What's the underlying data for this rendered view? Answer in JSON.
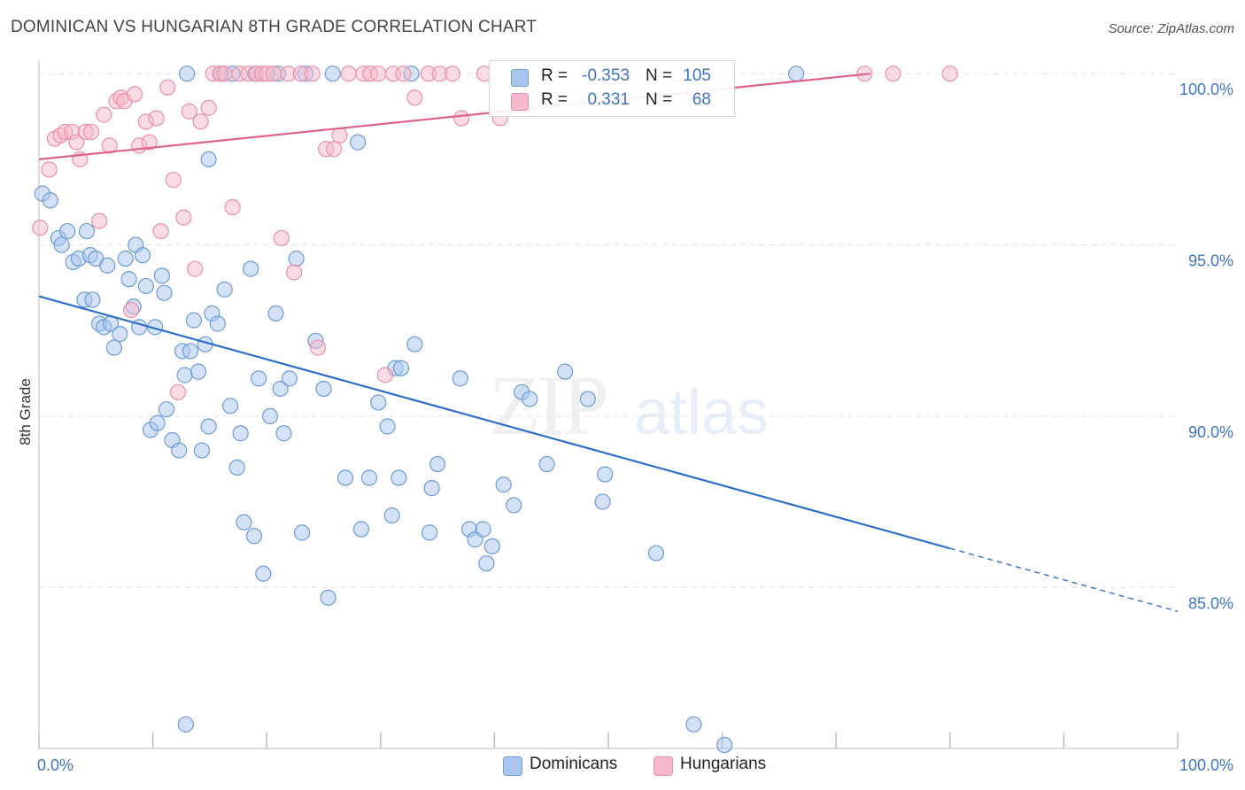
{
  "title": "DOMINICAN VS HUNGARIAN 8TH GRADE CORRELATION CHART",
  "source": "Source: ZipAtlas.com",
  "watermark": {
    "zip": "ZIP",
    "atlas": "atlas"
  },
  "colors": {
    "blue_fill": "#a9c6ef",
    "blue_stroke": "#6e9bd8",
    "blue_line": "#2f6fca",
    "pink_fill": "#f6b9cb",
    "pink_stroke": "#ec8fab",
    "pink_line": "#e0628c",
    "accent_text": "#3f74c9",
    "grid": "#e3e3e3"
  },
  "stats": [
    {
      "r_label": "R =",
      "r": "-0.353",
      "n_label": "N =",
      "n": "105",
      "color": "#a9c6ef",
      "stroke": "#6e9bd8"
    },
    {
      "r_label": "R =",
      "r": "0.331",
      "n_label": "N =",
      "n": "68",
      "color": "#f6b9cb",
      "stroke": "#ec8fab"
    }
  ],
  "legend": [
    {
      "label": "Dominicans",
      "color": "#a9c6ef",
      "stroke": "#6e9bd8"
    },
    {
      "label": "Hungarians",
      "color": "#f6b9cb",
      "stroke": "#ec8fab"
    }
  ],
  "chart_data": {
    "type": "scatter",
    "title": "DOMINICAN VS HUNGARIAN 8TH GRADE CORRELATION CHART",
    "xlabel": "",
    "ylabel": "8th Grade",
    "xlim": [
      0,
      100
    ],
    "ylim": [
      80.3,
      100.6
    ],
    "x_tick_labels": [
      "0.0%",
      "100.0%"
    ],
    "y_ticks": [
      85,
      90,
      95,
      100
    ],
    "y_tick_labels": [
      "85.0%",
      "90.0%",
      "95.0%",
      "100.0%"
    ],
    "grid": true,
    "legend_position": "bottom-center",
    "series": [
      {
        "name": "Dominicans",
        "color": "#a9c6ef",
        "trend": {
          "x0": 0,
          "y0": 93.5,
          "x1": 100,
          "y1": 84.3,
          "solid_until_x": 80
        },
        "points": [
          [
            0.3,
            96.5
          ],
          [
            1.0,
            96.3
          ],
          [
            1.7,
            95.2
          ],
          [
            2.0,
            95.0
          ],
          [
            2.5,
            95.4
          ],
          [
            3.0,
            94.5
          ],
          [
            3.5,
            94.6
          ],
          [
            4.0,
            93.4
          ],
          [
            4.5,
            94.7
          ],
          [
            4.7,
            93.4
          ],
          [
            5.0,
            94.6
          ],
          [
            5.3,
            92.7
          ],
          [
            5.7,
            92.6
          ],
          [
            6.0,
            94.4
          ],
          [
            6.3,
            92.7
          ],
          [
            6.6,
            92.0
          ],
          [
            7.1,
            92.4
          ],
          [
            7.6,
            94.6
          ],
          [
            7.9,
            94.0
          ],
          [
            8.3,
            93.2
          ],
          [
            8.5,
            95.0
          ],
          [
            8.8,
            92.6
          ],
          [
            9.1,
            94.7
          ],
          [
            9.4,
            93.8
          ],
          [
            9.8,
            89.6
          ],
          [
            10.2,
            92.6
          ],
          [
            10.4,
            89.8
          ],
          [
            10.8,
            94.1
          ],
          [
            11.0,
            93.6
          ],
          [
            11.2,
            90.2
          ],
          [
            11.7,
            89.3
          ],
          [
            12.3,
            89.0
          ],
          [
            12.6,
            91.9
          ],
          [
            12.8,
            91.2
          ],
          [
            13.3,
            91.9
          ],
          [
            13.6,
            92.8
          ],
          [
            14.0,
            91.3
          ],
          [
            14.3,
            89.0
          ],
          [
            14.6,
            92.1
          ],
          [
            14.9,
            89.7
          ],
          [
            15.2,
            93.0
          ],
          [
            15.7,
            92.7
          ],
          [
            16.3,
            93.7
          ],
          [
            16.8,
            90.3
          ],
          [
            17.4,
            88.5
          ],
          [
            17.7,
            89.5
          ],
          [
            18.0,
            86.9
          ],
          [
            18.6,
            94.3
          ],
          [
            18.9,
            86.5
          ],
          [
            19.3,
            91.1
          ],
          [
            19.7,
            85.4
          ],
          [
            20.3,
            90.0
          ],
          [
            20.8,
            93.0
          ],
          [
            21.2,
            90.8
          ],
          [
            21.5,
            89.5
          ],
          [
            22.0,
            91.1
          ],
          [
            22.6,
            94.6
          ],
          [
            23.1,
            86.6
          ],
          [
            23.4,
            100.0
          ],
          [
            24.3,
            92.2
          ],
          [
            25.0,
            90.8
          ],
          [
            25.4,
            84.7
          ],
          [
            25.8,
            100.0
          ],
          [
            26.9,
            88.2
          ],
          [
            28.0,
            98.0
          ],
          [
            28.3,
            86.7
          ],
          [
            29.0,
            88.2
          ],
          [
            29.8,
            90.4
          ],
          [
            30.6,
            89.7
          ],
          [
            31.0,
            87.1
          ],
          [
            31.3,
            91.4
          ],
          [
            31.6,
            88.2
          ],
          [
            31.8,
            91.4
          ],
          [
            32.7,
            100.0
          ],
          [
            33.0,
            92.1
          ],
          [
            34.3,
            86.6
          ],
          [
            34.5,
            87.9
          ],
          [
            35.0,
            88.6
          ],
          [
            37.0,
            91.1
          ],
          [
            37.8,
            86.7
          ],
          [
            38.3,
            86.4
          ],
          [
            39.0,
            86.7
          ],
          [
            39.3,
            85.7
          ],
          [
            39.8,
            86.2
          ],
          [
            40.8,
            88.0
          ],
          [
            41.7,
            87.4
          ],
          [
            42.4,
            90.7
          ],
          [
            43.1,
            90.5
          ],
          [
            44.6,
            88.6
          ],
          [
            46.2,
            91.3
          ],
          [
            48.2,
            90.5
          ],
          [
            49.5,
            87.5
          ],
          [
            49.7,
            88.3
          ],
          [
            54.2,
            86.0
          ],
          [
            57.5,
            81.0
          ],
          [
            60.2,
            80.4
          ],
          [
            14.9,
            97.5
          ],
          [
            12.9,
            81.0
          ],
          [
            66.5,
            100.0
          ],
          [
            16.0,
            100.0
          ],
          [
            21.0,
            100.0
          ],
          [
            19.0,
            100.0
          ],
          [
            4.2,
            95.4
          ],
          [
            17.0,
            100.0
          ],
          [
            13.0,
            100.0
          ]
        ]
      },
      {
        "name": "Hungarians",
        "color": "#f6b9cb",
        "trend": {
          "x0": 0,
          "y0": 97.5,
          "x1": 73,
          "y1": 100.0,
          "solid_until_x": 73
        },
        "points": [
          [
            0.1,
            95.5
          ],
          [
            0.9,
            97.2
          ],
          [
            1.4,
            98.1
          ],
          [
            1.9,
            98.2
          ],
          [
            2.3,
            98.3
          ],
          [
            2.9,
            98.3
          ],
          [
            3.3,
            98.0
          ],
          [
            3.6,
            97.5
          ],
          [
            4.1,
            98.3
          ],
          [
            4.6,
            98.3
          ],
          [
            5.3,
            95.7
          ],
          [
            5.7,
            98.8
          ],
          [
            6.2,
            97.9
          ],
          [
            6.8,
            99.2
          ],
          [
            7.2,
            99.3
          ],
          [
            7.5,
            99.2
          ],
          [
            8.1,
            93.1
          ],
          [
            8.4,
            99.4
          ],
          [
            8.8,
            97.9
          ],
          [
            9.4,
            98.6
          ],
          [
            9.7,
            98.0
          ],
          [
            10.3,
            98.7
          ],
          [
            10.7,
            95.4
          ],
          [
            11.3,
            99.6
          ],
          [
            11.8,
            96.9
          ],
          [
            12.2,
            90.7
          ],
          [
            12.7,
            95.8
          ],
          [
            13.2,
            98.9
          ],
          [
            13.7,
            94.3
          ],
          [
            14.2,
            98.6
          ],
          [
            14.9,
            99.0
          ],
          [
            15.3,
            100.0
          ],
          [
            15.9,
            100.0
          ],
          [
            16.3,
            100.0
          ],
          [
            17.0,
            96.1
          ],
          [
            17.6,
            100.0
          ],
          [
            18.4,
            100.0
          ],
          [
            19.1,
            100.0
          ],
          [
            19.6,
            100.0
          ],
          [
            20.0,
            100.0
          ],
          [
            20.6,
            100.0
          ],
          [
            21.3,
            95.2
          ],
          [
            21.9,
            100.0
          ],
          [
            22.4,
            94.2
          ],
          [
            23.0,
            100.0
          ],
          [
            24.0,
            100.0
          ],
          [
            24.5,
            92.0
          ],
          [
            25.2,
            97.8
          ],
          [
            25.9,
            97.8
          ],
          [
            26.4,
            98.2
          ],
          [
            27.2,
            100.0
          ],
          [
            28.5,
            100.0
          ],
          [
            29.1,
            100.0
          ],
          [
            29.8,
            100.0
          ],
          [
            30.4,
            91.2
          ],
          [
            31.1,
            100.0
          ],
          [
            32.0,
            100.0
          ],
          [
            33.0,
            99.3
          ],
          [
            34.2,
            100.0
          ],
          [
            35.2,
            100.0
          ],
          [
            36.3,
            100.0
          ],
          [
            37.1,
            98.7
          ],
          [
            39.1,
            100.0
          ],
          [
            40.5,
            98.7
          ],
          [
            56.0,
            100.0
          ],
          [
            72.5,
            100.0
          ],
          [
            75.0,
            100.0
          ],
          [
            80.0,
            100.0
          ]
        ]
      }
    ]
  }
}
